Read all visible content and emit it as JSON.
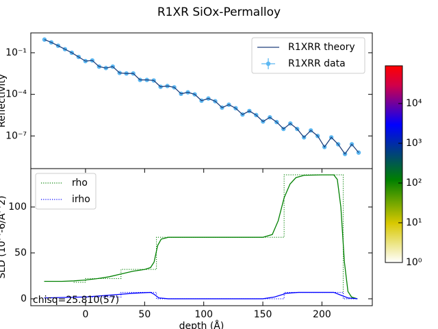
{
  "title": "R1XR SiOx-Permalloy",
  "chart_data": [
    {
      "type": "line",
      "yscale": "log",
      "ylabel": "Reflectivity",
      "xlim": [
        0,
        0.25
      ],
      "ylim": [
        4.4e-10,
        2.7
      ],
      "yticks": [
        {
          "value": 0.1,
          "label": "10⁻¹"
        },
        {
          "value": 0.0001,
          "label": "10⁻⁴"
        },
        {
          "value": 1e-07,
          "label": "10⁻⁷"
        }
      ],
      "legend": "upper right",
      "x": [
        0.01,
        0.015,
        0.02,
        0.025,
        0.03,
        0.035,
        0.04,
        0.045,
        0.05,
        0.055,
        0.06,
        0.065,
        0.07,
        0.075,
        0.08,
        0.085,
        0.09,
        0.095,
        0.1,
        0.105,
        0.11,
        0.115,
        0.12,
        0.125,
        0.13,
        0.135,
        0.14,
        0.145,
        0.15,
        0.155,
        0.16,
        0.165,
        0.17,
        0.175,
        0.18,
        0.185,
        0.19,
        0.195,
        0.2,
        0.205,
        0.21,
        0.215,
        0.22,
        0.225,
        0.23,
        0.235,
        0.24
      ],
      "series": [
        {
          "name": "R1XRR theory",
          "color": "#1f3f7a",
          "style": "line",
          "values": [
            0.89,
            0.56,
            0.32,
            0.18,
            0.1,
            0.05,
            0.025,
            0.028,
            0.01,
            0.0079,
            0.01,
            0.0035,
            0.0032,
            0.0032,
            0.0011,
            0.0011,
            0.001,
            0.00035,
            0.0004,
            0.00032,
            0.00011,
            0.00014,
            0.0001,
            3.5e-05,
            5e-05,
            3.2e-05,
            1.1e-05,
            1.8e-05,
            1e-05,
            3.5e-06,
            6.3e-06,
            3.2e-06,
            1.1e-06,
            2.2e-06,
            1e-06,
            3.2e-07,
            7.9e-07,
            3.2e-07,
            7.9e-08,
            2.5e-07,
            1e-07,
            1.6e-08,
            7.9e-08,
            2.5e-08,
            5e-09,
            2.5e-08,
            6.3e-09
          ]
        },
        {
          "name": "R1XRR data",
          "color": "#5cb8f2",
          "style": "points",
          "values": [
            0.89,
            0.56,
            0.32,
            0.18,
            0.1,
            0.05,
            0.025,
            0.028,
            0.01,
            0.0079,
            0.01,
            0.0035,
            0.0032,
            0.0032,
            0.0011,
            0.0011,
            0.001,
            0.00035,
            0.0004,
            0.00032,
            0.00011,
            0.00014,
            0.0001,
            3.5e-05,
            5e-05,
            3.2e-05,
            1.1e-05,
            1.8e-05,
            1e-05,
            3.5e-06,
            6.3e-06,
            3.2e-06,
            1.1e-06,
            2.2e-06,
            1e-06,
            3.2e-07,
            7.9e-07,
            3.2e-07,
            7.9e-08,
            2.5e-07,
            1e-07,
            1.6e-08,
            7.9e-08,
            2.5e-08,
            5e-09,
            2.5e-08,
            6.3e-09
          ]
        }
      ]
    },
    {
      "type": "line",
      "xlabel": "depth (Å)",
      "ylabel": "SLD (10^-6/Å^2)",
      "xlim": [
        -46.3,
        242.6
      ],
      "ylim": [
        -7.5,
        141.8
      ],
      "xticks": [
        0,
        50,
        100,
        150,
        200
      ],
      "yticks": [
        0,
        50,
        100
      ],
      "legend": "upper left",
      "annotation": "chisq=25.810(57)",
      "series": [
        {
          "name": "rho",
          "color": "#008000",
          "style": "dotted",
          "x": [
            -10,
            0,
            0,
            30,
            30,
            60,
            60,
            168,
            168,
            218,
            218,
            228
          ],
          "values": [
            18,
            18,
            22,
            22,
            32,
            32,
            67,
            67,
            135,
            135,
            0,
            0
          ]
        },
        {
          "name": "irho",
          "color": "#0000ff",
          "style": "dotted",
          "x": [
            0,
            30,
            30,
            60,
            60,
            168,
            168,
            218,
            218,
            228
          ],
          "values": [
            2,
            2,
            7,
            7,
            0,
            0,
            7,
            7,
            0,
            0
          ]
        },
        {
          "color": "#008000",
          "style": "line",
          "x": [
            -35,
            -20,
            -10,
            0,
            10,
            20,
            30,
            40,
            50,
            55,
            58,
            61,
            64,
            70,
            100,
            150,
            158,
            163,
            168,
            173,
            178,
            185,
            200,
            210,
            213,
            216,
            219,
            222,
            225,
            230
          ],
          "values": [
            19,
            19,
            19.5,
            20.5,
            22,
            24,
            27,
            30,
            32,
            34,
            40,
            58,
            65,
            67,
            67,
            67,
            70,
            85,
            110,
            125,
            132,
            134.5,
            135,
            135,
            130,
            100,
            40,
            8,
            2,
            0
          ]
        },
        {
          "color": "#0000ff",
          "style": "line",
          "x": [
            -35,
            0,
            20,
            40,
            55,
            58,
            62,
            70,
            150,
            160,
            170,
            180,
            210,
            216,
            222,
            230
          ],
          "values": [
            1,
            2,
            4,
            6,
            7,
            5,
            1,
            0,
            0,
            2,
            6,
            7,
            7,
            4,
            1,
            0
          ]
        }
      ]
    }
  ],
  "colorbar": {
    "scale": "log",
    "lim": [
      1,
      89000
    ],
    "ticks": [
      {
        "value": 1,
        "label": "10⁰"
      },
      {
        "value": 10,
        "label": "10¹"
      },
      {
        "value": 100,
        "label": "10²"
      },
      {
        "value": 1000,
        "label": "10³"
      },
      {
        "value": 10000,
        "label": "10⁴"
      }
    ]
  }
}
